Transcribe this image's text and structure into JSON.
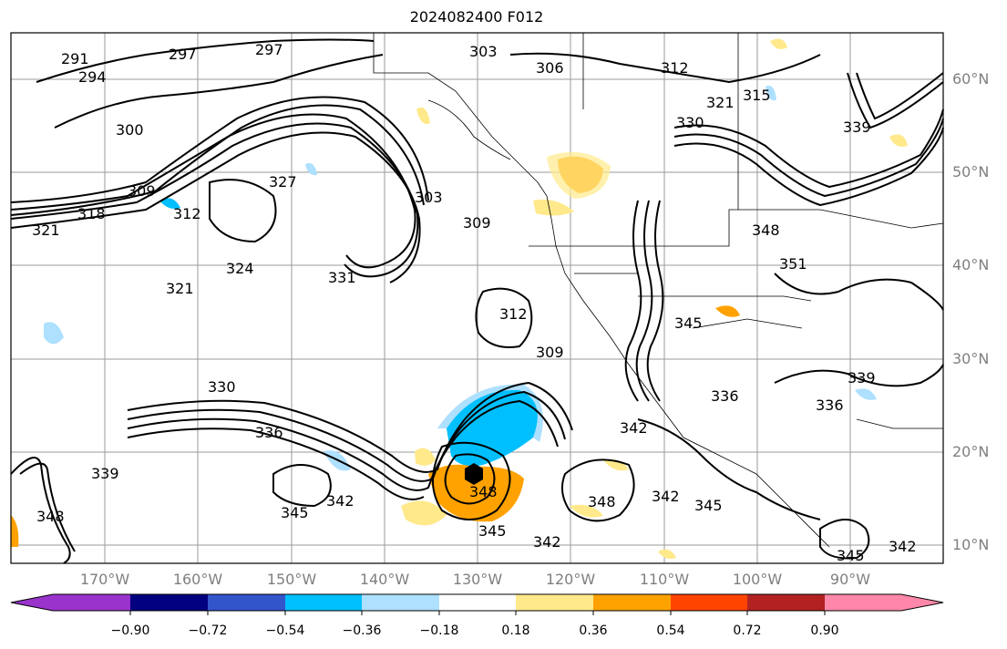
{
  "title": "2024082400 F012",
  "map": {
    "lat_ticks": [
      "60°N",
      "50°N",
      "40°N",
      "30°N",
      "20°N",
      "10°N"
    ],
    "lon_ticks": [
      "170°W",
      "160°W",
      "150°W",
      "140°W",
      "130°W",
      "120°W",
      "110°W",
      "100°W",
      "90°W"
    ],
    "contour_labels": [
      "291",
      "294",
      "297",
      "297",
      "303",
      "306",
      "312",
      "321",
      "315",
      "300",
      "330",
      "339",
      "309",
      "318",
      "312",
      "321",
      "327",
      "303",
      "309",
      "324",
      "321",
      "331",
      "312",
      "309",
      "330",
      "336",
      "339",
      "345",
      "342",
      "348",
      "345",
      "342",
      "342",
      "348",
      "345",
      "342",
      "345",
      "351",
      "348",
      "336",
      "339",
      "336",
      "342",
      "345",
      "348"
    ],
    "fill_colors": {
      "negative_strong": "#00bfff",
      "negative_light": "#b0e0ff",
      "positive_light": "#ffe98a",
      "positive_mid": "#ffa200"
    },
    "storm_marker": "hurricane-symbol"
  },
  "colorbar": {
    "colors": [
      "#9933cc",
      "#000080",
      "#3355cc",
      "#00bfff",
      "#aee0ff",
      "#ffffff",
      "#ffe98a",
      "#ffa200",
      "#ff4400",
      "#b22222",
      "#ff88aa"
    ],
    "tick_labels": [
      "−0.90",
      "−0.72",
      "−0.54",
      "−0.36",
      "−0.18",
      "0.18",
      "0.36",
      "0.54",
      "0.72",
      "0.90"
    ]
  }
}
